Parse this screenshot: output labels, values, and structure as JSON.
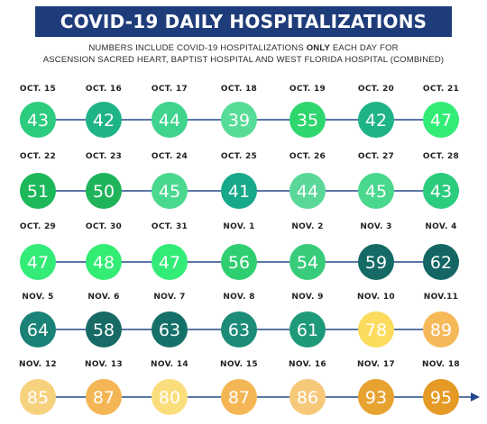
{
  "title": "COVID-19 DAILY HOSPITALIZATIONS",
  "subtitle": {
    "line1_prefix": "NUMBERS INCLUDE COVID-19 HOSPITALIZATIONS",
    "line1_emphasis": "ONLY",
    "line1_suffix": "EACH DAY FOR",
    "line2": "ASCENSION SACRED HEART, BAPTIST HOSPITAL AND WEST FLORIDA HOSPITAL (COMBINED)"
  },
  "colors": {
    "banner": "#1f3c7a",
    "connector": "#234a8a",
    "range_30s": "#34d17c",
    "range_40s": "#3ad88a",
    "range_50s": "#1fa877",
    "range_60s": "#1a7a72",
    "range_70s": "#fbd65a",
    "range_80s": "#f5b352",
    "range_90s": "#e8a22e"
  },
  "chart_data": {
    "type": "table",
    "unit": "daily COVID-19 hospitalizations",
    "days": [
      {
        "date": "OCT. 15",
        "value": 43,
        "color": "#2ccc7e"
      },
      {
        "date": "OCT. 16",
        "value": 42,
        "color": "#1fb487"
      },
      {
        "date": "OCT. 17",
        "value": 44,
        "color": "#3ed48e"
      },
      {
        "date": "OCT. 18",
        "value": 39,
        "color": "#56dc96"
      },
      {
        "date": "OCT. 19",
        "value": 35,
        "color": "#2ed66e"
      },
      {
        "date": "OCT. 20",
        "value": 42,
        "color": "#1fb487"
      },
      {
        "date": "OCT. 21",
        "value": 47,
        "color": "#33ec78"
      },
      {
        "date": "OCT. 22",
        "value": 51,
        "color": "#1db85a"
      },
      {
        "date": "OCT. 23",
        "value": 50,
        "color": "#1fb45a"
      },
      {
        "date": "OCT. 24",
        "value": 45,
        "color": "#4ad88e"
      },
      {
        "date": "OCT. 25",
        "value": 41,
        "color": "#18a88a"
      },
      {
        "date": "OCT. 26",
        "value": 44,
        "color": "#5ad89a"
      },
      {
        "date": "OCT. 27",
        "value": 45,
        "color": "#4ad88e"
      },
      {
        "date": "OCT. 28",
        "value": 43,
        "color": "#2ccc7e"
      },
      {
        "date": "OCT. 29",
        "value": 47,
        "color": "#33ec78"
      },
      {
        "date": "OCT. 30",
        "value": 48,
        "color": "#33ec74"
      },
      {
        "date": "OCT. 31",
        "value": 47,
        "color": "#33ec78"
      },
      {
        "date": "NOV. 1",
        "value": 56,
        "color": "#2fce70"
      },
      {
        "date": "NOV. 2",
        "value": 54,
        "color": "#38cc7a"
      },
      {
        "date": "NOV. 3",
        "value": 59,
        "color": "#166a66"
      },
      {
        "date": "NOV. 4",
        "value": 62,
        "color": "#136664"
      },
      {
        "date": "NOV. 5",
        "value": 64,
        "color": "#1a8276"
      },
      {
        "date": "NOV. 6",
        "value": 58,
        "color": "#176a66"
      },
      {
        "date": "NOV. 7",
        "value": 63,
        "color": "#16706a"
      },
      {
        "date": "NOV. 8",
        "value": 63,
        "color": "#1c8c78"
      },
      {
        "date": "NOV. 9",
        "value": 61,
        "color": "#1e9a7a"
      },
      {
        "date": "NOV. 10",
        "value": 78,
        "color": "#fbdc5c"
      },
      {
        "date": "NOV.11",
        "value": 89,
        "color": "#f6b95a"
      },
      {
        "date": "NOV. 12",
        "value": 85,
        "color": "#f7d27e"
      },
      {
        "date": "NOV. 13",
        "value": 87,
        "color": "#f4b654"
      },
      {
        "date": "NOV. 14",
        "value": 80,
        "color": "#fbde7c"
      },
      {
        "date": "NOV. 15",
        "value": 87,
        "color": "#f4b654"
      },
      {
        "date": "NOV. 16",
        "value": 86,
        "color": "#f6c87a"
      },
      {
        "date": "NOV. 17",
        "value": 93,
        "color": "#e8a230"
      },
      {
        "date": "NOV. 18",
        "value": 95,
        "color": "#e59a26"
      }
    ]
  }
}
